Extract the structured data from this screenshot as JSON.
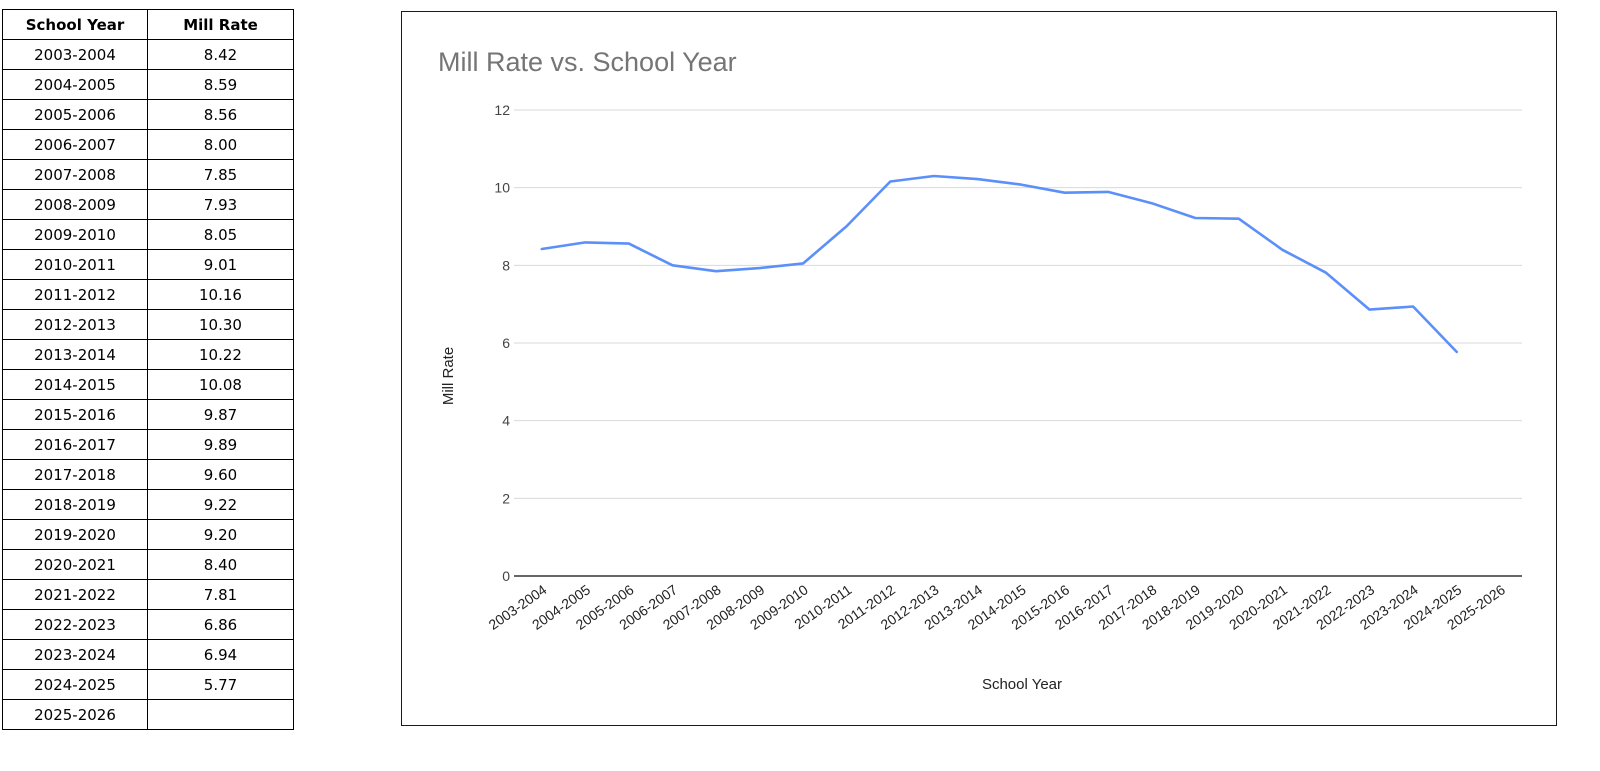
{
  "table": {
    "headers": [
      "School Year",
      "Mill Rate"
    ],
    "rows": [
      [
        "2003-2004",
        "8.42"
      ],
      [
        "2004-2005",
        "8.59"
      ],
      [
        "2005-2006",
        "8.56"
      ],
      [
        "2006-2007",
        "8.00"
      ],
      [
        "2007-2008",
        "7.85"
      ],
      [
        "2008-2009",
        "7.93"
      ],
      [
        "2009-2010",
        "8.05"
      ],
      [
        "2010-2011",
        "9.01"
      ],
      [
        "2011-2012",
        "10.16"
      ],
      [
        "2012-2013",
        "10.30"
      ],
      [
        "2013-2014",
        "10.22"
      ],
      [
        "2014-2015",
        "10.08"
      ],
      [
        "2015-2016",
        "9.87"
      ],
      [
        "2016-2017",
        "9.89"
      ],
      [
        "2017-2018",
        "9.60"
      ],
      [
        "2018-2019",
        "9.22"
      ],
      [
        "2019-2020",
        "9.20"
      ],
      [
        "2020-2021",
        "8.40"
      ],
      [
        "2021-2022",
        "7.81"
      ],
      [
        "2022-2023",
        "6.86"
      ],
      [
        "2023-2024",
        "6.94"
      ],
      [
        "2024-2025",
        "5.77"
      ],
      [
        "2025-2026",
        ""
      ]
    ]
  },
  "chart_data": {
    "type": "line",
    "title": "Mill Rate  vs. School Year",
    "xlabel": "School Year",
    "ylabel": "Mill Rate",
    "categories": [
      "2003-2004",
      "2004-2005",
      "2005-2006",
      "2006-2007",
      "2007-2008",
      "2008-2009",
      "2009-2010",
      "2010-2011",
      "2011-2012",
      "2012-2013",
      "2013-2014",
      "2014-2015",
      "2015-2016",
      "2016-2017",
      "2017-2018",
      "2018-2019",
      "2019-2020",
      "2020-2021",
      "2021-2022",
      "2022-2023",
      "2023-2024",
      "2024-2025",
      "2025-2026"
    ],
    "series": [
      {
        "values": [
          8.42,
          8.59,
          8.56,
          8.0,
          7.85,
          7.93,
          8.05,
          9.01,
          10.16,
          10.3,
          10.22,
          10.08,
          9.87,
          9.89,
          9.6,
          9.22,
          9.2,
          8.4,
          7.81,
          6.86,
          6.94,
          5.77,
          null
        ],
        "color": "#5b8ff9"
      }
    ],
    "ylim": [
      0,
      12
    ],
    "yticks": [
      0,
      2,
      4,
      6,
      8,
      10,
      12
    ],
    "grid": true,
    "legend": "none"
  }
}
